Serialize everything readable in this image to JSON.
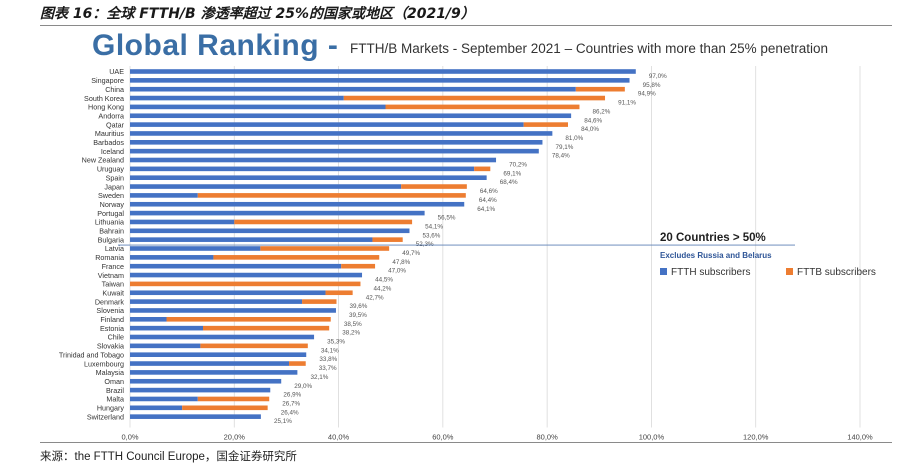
{
  "figure_title": "图表 16：全球 FTTH/B 渗透率超过 25%的国家或地区（2021/9）",
  "source": "来源：the FTTH Council Europe，国金证券研究所",
  "chart_data": {
    "type": "bar",
    "title": "Global Ranking -",
    "subtitle": "FTTH/B Markets - September 2021 – Countries with more than 25% penetration",
    "categories": [
      "UAE",
      "Singapore",
      "China",
      "South Korea",
      "Hong Kong",
      "Andorra",
      "Qatar",
      "Mauritius",
      "Barbados",
      "Iceland",
      "New Zealand",
      "Uruguay",
      "Spain",
      "Japan",
      "Sweden",
      "Norway",
      "Portugal",
      "Lithuania",
      "Bahrain",
      "Bulgaria",
      "Latvia",
      "Romania",
      "France",
      "Vietnam",
      "Taiwan",
      "Kuwait",
      "Denmark",
      "Slovenia",
      "Finland",
      "Estonia",
      "Chile",
      "Slovakia",
      "Trinidad and Tobago",
      "Luxembourg",
      "Malaysia",
      "Oman",
      "Brazil",
      "Malta",
      "Hungary",
      "Switzerland"
    ],
    "series": [
      {
        "name": "FTTH subscribers",
        "color": "#4472c4",
        "values": [
          97.0,
          95.8,
          85.5,
          41.0,
          49.0,
          84.6,
          75.5,
          81.0,
          79.1,
          78.4,
          70.2,
          66.0,
          68.4,
          52.0,
          13.0,
          64.1,
          56.5,
          20.0,
          53.6,
          46.5,
          25.0,
          16.0,
          40.5,
          44.5,
          0.0,
          37.5,
          33.0,
          39.5,
          7.0,
          14.0,
          35.3,
          13.5,
          33.8,
          30.5,
          32.1,
          29.0,
          26.9,
          13.0,
          10.0,
          25.1
        ]
      },
      {
        "name": "FTTB subscribers",
        "color": "#ed7d31",
        "values": [
          0.0,
          0.0,
          9.4,
          50.1,
          37.2,
          0.0,
          8.5,
          0.0,
          0.0,
          0.0,
          0.0,
          3.1,
          0.0,
          12.6,
          51.4,
          0.0,
          0.0,
          34.1,
          0.0,
          5.8,
          24.7,
          31.8,
          6.5,
          0.0,
          44.2,
          5.2,
          6.6,
          0.0,
          31.5,
          24.2,
          0.0,
          20.6,
          0.0,
          3.2,
          0.0,
          0.0,
          0.0,
          13.7,
          16.4,
          0.0
        ]
      }
    ],
    "totals": [
      "97,0%",
      "95,8%",
      "94,9%",
      "91,1%",
      "86,2%",
      "84,6%",
      "84,0%",
      "81,0%",
      "79,1%",
      "78,4%",
      "70,2%",
      "69,1%",
      "68,4%",
      "64,6%",
      "64,4%",
      "64,1%",
      "56,5%",
      "54,1%",
      "53,6%",
      "52,3%",
      "49,7%",
      "47,8%",
      "47,0%",
      "44,5%",
      "44,2%",
      "42,7%",
      "39,6%",
      "39,5%",
      "38,5%",
      "38,2%",
      "35,3%",
      "34,1%",
      "33,8%",
      "33,7%",
      "32,1%",
      "29,0%",
      "26,9%",
      "26,7%",
      "26,4%",
      "25,1%"
    ],
    "xlim": [
      0,
      140
    ],
    "xticks": [
      "0,0%",
      "20,0%",
      "40,0%",
      "60,0%",
      "80,0%",
      "100,0%",
      "120,0%",
      "140,0%"
    ],
    "grid": true,
    "separator_after_index": 19,
    "annotation": {
      "headline": "20 Countries > 50%",
      "note": "Excludes Russia and Belarus"
    },
    "legend": {
      "position": "right"
    }
  }
}
